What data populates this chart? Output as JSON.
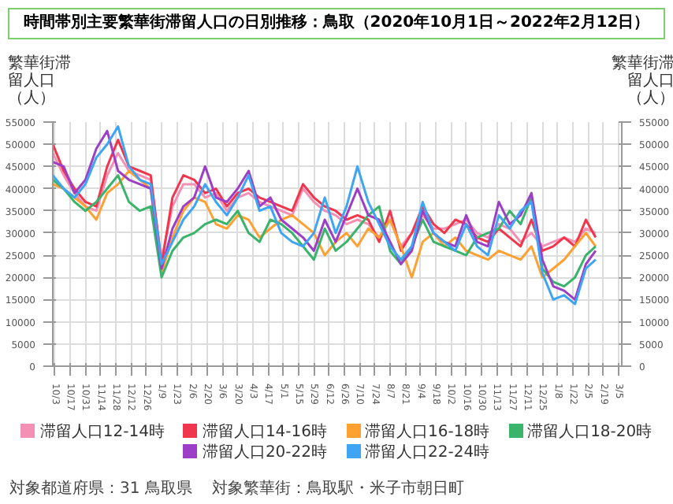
{
  "chart_data": {
    "type": "line",
    "title": "時間帯別主要繁華街滞留人口の日別推移：鳥取（2020年10月1日～2022年2月12日）",
    "ylabel": "繁華街滞留人口（人）",
    "y2label": "繁華街滞留人口（人）",
    "x": [
      "2020-10-01",
      "2020-10-11",
      "2020-10-21",
      "2020-10-31",
      "2020-11-10",
      "2020-11-20",
      "2020-11-30",
      "2020-12-10",
      "2020-12-20",
      "2020-12-30",
      "2021-01-09",
      "2021-01-19",
      "2021-01-29",
      "2021-02-08",
      "2021-02-18",
      "2021-02-28",
      "2021-03-10",
      "2021-03-20",
      "2021-03-30",
      "2021-04-09",
      "2021-04-19",
      "2021-04-29",
      "2021-05-09",
      "2021-05-19",
      "2021-05-29",
      "2021-06-08",
      "2021-06-18",
      "2021-06-28",
      "2021-07-08",
      "2021-07-18",
      "2021-07-28",
      "2021-08-07",
      "2021-08-17",
      "2021-08-27",
      "2021-09-06",
      "2021-09-16",
      "2021-09-26",
      "2021-10-06",
      "2021-10-16",
      "2021-10-26",
      "2021-11-05",
      "2021-11-15",
      "2021-11-25",
      "2021-12-05",
      "2021-12-15",
      "2021-12-25",
      "2022-01-04",
      "2022-01-14",
      "2022-01-24",
      "2022-02-03",
      "2022-02-12"
    ],
    "series": [
      {
        "name": "滞留人口12-14時",
        "color": "#f590b5",
        "values": [
          48000,
          43000,
          39000,
          36000,
          35000,
          43000,
          48000,
          44000,
          43000,
          42000,
          24000,
          36000,
          41000,
          41000,
          38000,
          39000,
          35000,
          38000,
          39000,
          37000,
          36000,
          35000,
          34000,
          40000,
          37000,
          35000,
          34000,
          32000,
          33000,
          32000,
          29000,
          33000,
          27000,
          30000,
          34000,
          31000,
          31000,
          32000,
          33000,
          30000,
          29000,
          32000,
          31000,
          28000,
          30000,
          27000,
          28000,
          29000,
          28000,
          31000,
          30000
        ]
      },
      {
        "name": "滞留人口14-16時",
        "color": "#f0364c",
        "values": [
          50000,
          44000,
          40000,
          37000,
          36000,
          45000,
          51000,
          45000,
          44000,
          43000,
          23000,
          38000,
          43000,
          42000,
          39000,
          40000,
          36000,
          39000,
          40000,
          38000,
          37000,
          36000,
          35000,
          41000,
          38000,
          36000,
          35000,
          33000,
          34000,
          33000,
          28000,
          35000,
          26000,
          30000,
          36000,
          32000,
          30000,
          33000,
          32000,
          29000,
          28000,
          31000,
          29000,
          27000,
          33000,
          26000,
          27000,
          29000,
          27000,
          33000,
          29000
        ]
      },
      {
        "name": "滞留人口16-18時",
        "color": "#ffa033",
        "values": [
          41000,
          40000,
          38000,
          36000,
          33000,
          39000,
          41000,
          44000,
          42000,
          40000,
          21000,
          29000,
          35000,
          38000,
          37000,
          32000,
          31000,
          34000,
          33000,
          29000,
          31000,
          33000,
          34000,
          32000,
          30000,
          25000,
          28000,
          30000,
          27000,
          31000,
          29000,
          33000,
          27000,
          20000,
          28000,
          30000,
          27000,
          29000,
          26000,
          25000,
          24000,
          26000,
          25000,
          24000,
          27000,
          20000,
          22000,
          24000,
          27000,
          30000,
          27000
        ]
      },
      {
        "name": "滞留人口18-20時",
        "color": "#3ab36b",
        "values": [
          42000,
          40000,
          37000,
          35000,
          37000,
          40000,
          43000,
          37000,
          35000,
          36000,
          20000,
          26000,
          29000,
          30000,
          32000,
          33000,
          32000,
          35000,
          30000,
          28000,
          33000,
          32000,
          30000,
          27000,
          24000,
          31000,
          26000,
          28000,
          31000,
          34000,
          36000,
          26000,
          23000,
          27000,
          33000,
          28000,
          27000,
          26000,
          25000,
          29000,
          30000,
          31000,
          35000,
          32000,
          38000,
          22000,
          19000,
          18000,
          20000,
          25000,
          27000
        ]
      },
      {
        "name": "滞留人口20-22時",
        "color": "#9c3fc6",
        "values": [
          46000,
          45000,
          39000,
          42000,
          49000,
          53000,
          44000,
          42000,
          41000,
          40000,
          22000,
          31000,
          36000,
          38000,
          45000,
          38000,
          37000,
          40000,
          44000,
          36000,
          38000,
          33000,
          31000,
          29000,
          26000,
          33000,
          28000,
          34000,
          40000,
          34000,
          33000,
          28000,
          23000,
          26000,
          35000,
          30000,
          28000,
          27000,
          34000,
          28000,
          27000,
          37000,
          32000,
          34000,
          39000,
          24000,
          18000,
          17000,
          15000,
          23000,
          26000
        ]
      },
      {
        "name": "滞留人口22-24時",
        "color": "#3ea5f5",
        "values": [
          43000,
          40000,
          38000,
          41000,
          47000,
          50000,
          54000,
          45000,
          42000,
          41000,
          23000,
          28000,
          33000,
          36000,
          41000,
          37000,
          34000,
          38000,
          43000,
          35000,
          36000,
          30000,
          28000,
          27000,
          30000,
          38000,
          30000,
          36000,
          45000,
          37000,
          32000,
          27000,
          24000,
          27000,
          37000,
          30000,
          28000,
          26000,
          32000,
          27000,
          25000,
          34000,
          31000,
          35000,
          37000,
          21000,
          15000,
          16000,
          14000,
          22000,
          24000
        ]
      }
    ],
    "xlim": [
      "2020-10-01",
      "2022-03-08"
    ],
    "xticks": [
      {
        "value": "2020-10-03",
        "label": "10/3"
      },
      {
        "value": "2020-10-17",
        "label": "10/17"
      },
      {
        "value": "2020-10-31",
        "label": "10/31"
      },
      {
        "value": "2020-11-14",
        "label": "11/14"
      },
      {
        "value": "2020-11-28",
        "label": "11/28"
      },
      {
        "value": "2020-12-12",
        "label": "12/12"
      },
      {
        "value": "2020-12-26",
        "label": "12/26"
      },
      {
        "value": "2021-01-09",
        "label": "1/9"
      },
      {
        "value": "2021-01-23",
        "label": "1/23"
      },
      {
        "value": "2021-02-06",
        "label": "2/6"
      },
      {
        "value": "2021-02-20",
        "label": "2/20"
      },
      {
        "value": "2021-03-06",
        "label": "3/6"
      },
      {
        "value": "2021-03-20",
        "label": "3/20"
      },
      {
        "value": "2021-04-03",
        "label": "4/3"
      },
      {
        "value": "2021-04-17",
        "label": "4/17"
      },
      {
        "value": "2021-05-01",
        "label": "5/1"
      },
      {
        "value": "2021-05-15",
        "label": "5/15"
      },
      {
        "value": "2021-05-29",
        "label": "5/29"
      },
      {
        "value": "2021-06-12",
        "label": "6/12"
      },
      {
        "value": "2021-06-26",
        "label": "6/26"
      },
      {
        "value": "2021-07-10",
        "label": "7/10"
      },
      {
        "value": "2021-07-24",
        "label": "7/24"
      },
      {
        "value": "2021-08-07",
        "label": "8/7"
      },
      {
        "value": "2021-08-21",
        "label": "8/21"
      },
      {
        "value": "2021-09-04",
        "label": "9/4"
      },
      {
        "value": "2021-09-18",
        "label": "9/18"
      },
      {
        "value": "2021-10-02",
        "label": "10/2"
      },
      {
        "value": "2021-10-16",
        "label": "10/16"
      },
      {
        "value": "2021-10-30",
        "label": "10/30"
      },
      {
        "value": "2021-11-13",
        "label": "11/13"
      },
      {
        "value": "2021-11-27",
        "label": "11/27"
      },
      {
        "value": "2021-12-11",
        "label": "12/11"
      },
      {
        "value": "2021-12-25",
        "label": "12/25"
      },
      {
        "value": "2022-01-08",
        "label": "1/8"
      },
      {
        "value": "2022-01-22",
        "label": "1/22"
      },
      {
        "value": "2022-02-05",
        "label": "2/5"
      },
      {
        "value": "2022-02-19",
        "label": "2/19"
      },
      {
        "value": "2022-03-05",
        "label": "3/5"
      }
    ],
    "ylim": [
      0,
      55000
    ],
    "yticks": [
      0,
      5000,
      10000,
      15000,
      20000,
      25000,
      30000,
      35000,
      40000,
      45000,
      50000,
      55000
    ],
    "y2lim": [
      0,
      55000
    ],
    "y2ticks": [
      0,
      5000,
      10000,
      15000,
      20000,
      25000,
      30000,
      35000,
      40000,
      45000,
      50000,
      55000
    ],
    "grid": true,
    "legend": "bottom",
    "annotations": [
      "対象都道府県：31 鳥取県",
      "対象繁華街：鳥取駅・米子市朝日町"
    ]
  }
}
